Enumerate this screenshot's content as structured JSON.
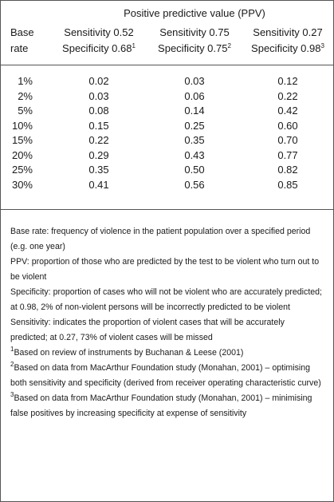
{
  "table": {
    "super_header": "Positive predictive value (PPV)",
    "row_header": [
      "Base",
      "rate"
    ],
    "columns": [
      {
        "sensitivity": "Sensitivity 0.52",
        "specificity": "Specificity 0.68",
        "note": "1"
      },
      {
        "sensitivity": "Sensitivity 0.75",
        "specificity": "Specificity 0.75",
        "note": "2"
      },
      {
        "sensitivity": "Sensitivity 0.27",
        "specificity": "Specificity 0.98",
        "note": "3"
      }
    ],
    "rows": [
      [
        "1%",
        "0.02",
        "0.03",
        "0.12"
      ],
      [
        "2%",
        "0.03",
        "0.06",
        "0.22"
      ],
      [
        "5%",
        "0.08",
        "0.14",
        "0.42"
      ],
      [
        "10%",
        "0.15",
        "0.25",
        "0.60"
      ],
      [
        "15%",
        "0.22",
        "0.35",
        "0.70"
      ],
      [
        "20%",
        "0.29",
        "0.43",
        "0.77"
      ],
      [
        "25%",
        "0.35",
        "0.50",
        "0.82"
      ],
      [
        "30%",
        "0.41",
        "0.56",
        "0.85"
      ]
    ]
  },
  "notes": [
    "Base rate: frequency of violence in the patient population over a specified period (e.g. one year)",
    "PPV: proportion of those who are predicted by the test to be violent who turn out to be violent",
    "Specificity: proportion of cases who will not be violent who are accurately predicted; at 0.98, 2% of non-violent persons will be incorrectly predicted to be violent",
    "Sensitivity: indicates the proportion of violent cases that will be accurately predicted; at 0.27, 73% of violent cases will be missed"
  ],
  "footnotes": [
    {
      "marker": "1",
      "text": "Based on review of instruments by Buchanan & Leese (2001)"
    },
    {
      "marker": "2",
      "text": "Based on data from MacArthur Foundation study (Monahan, 2001) – optimising both sensitivity and specificity (derived from receiver operating characteristic curve)"
    },
    {
      "marker": "3",
      "text": "Based on data from MacArthur Foundation study (Monahan, 2001) – minimising false positives by increasing specificity at expense of sensitivity"
    }
  ]
}
